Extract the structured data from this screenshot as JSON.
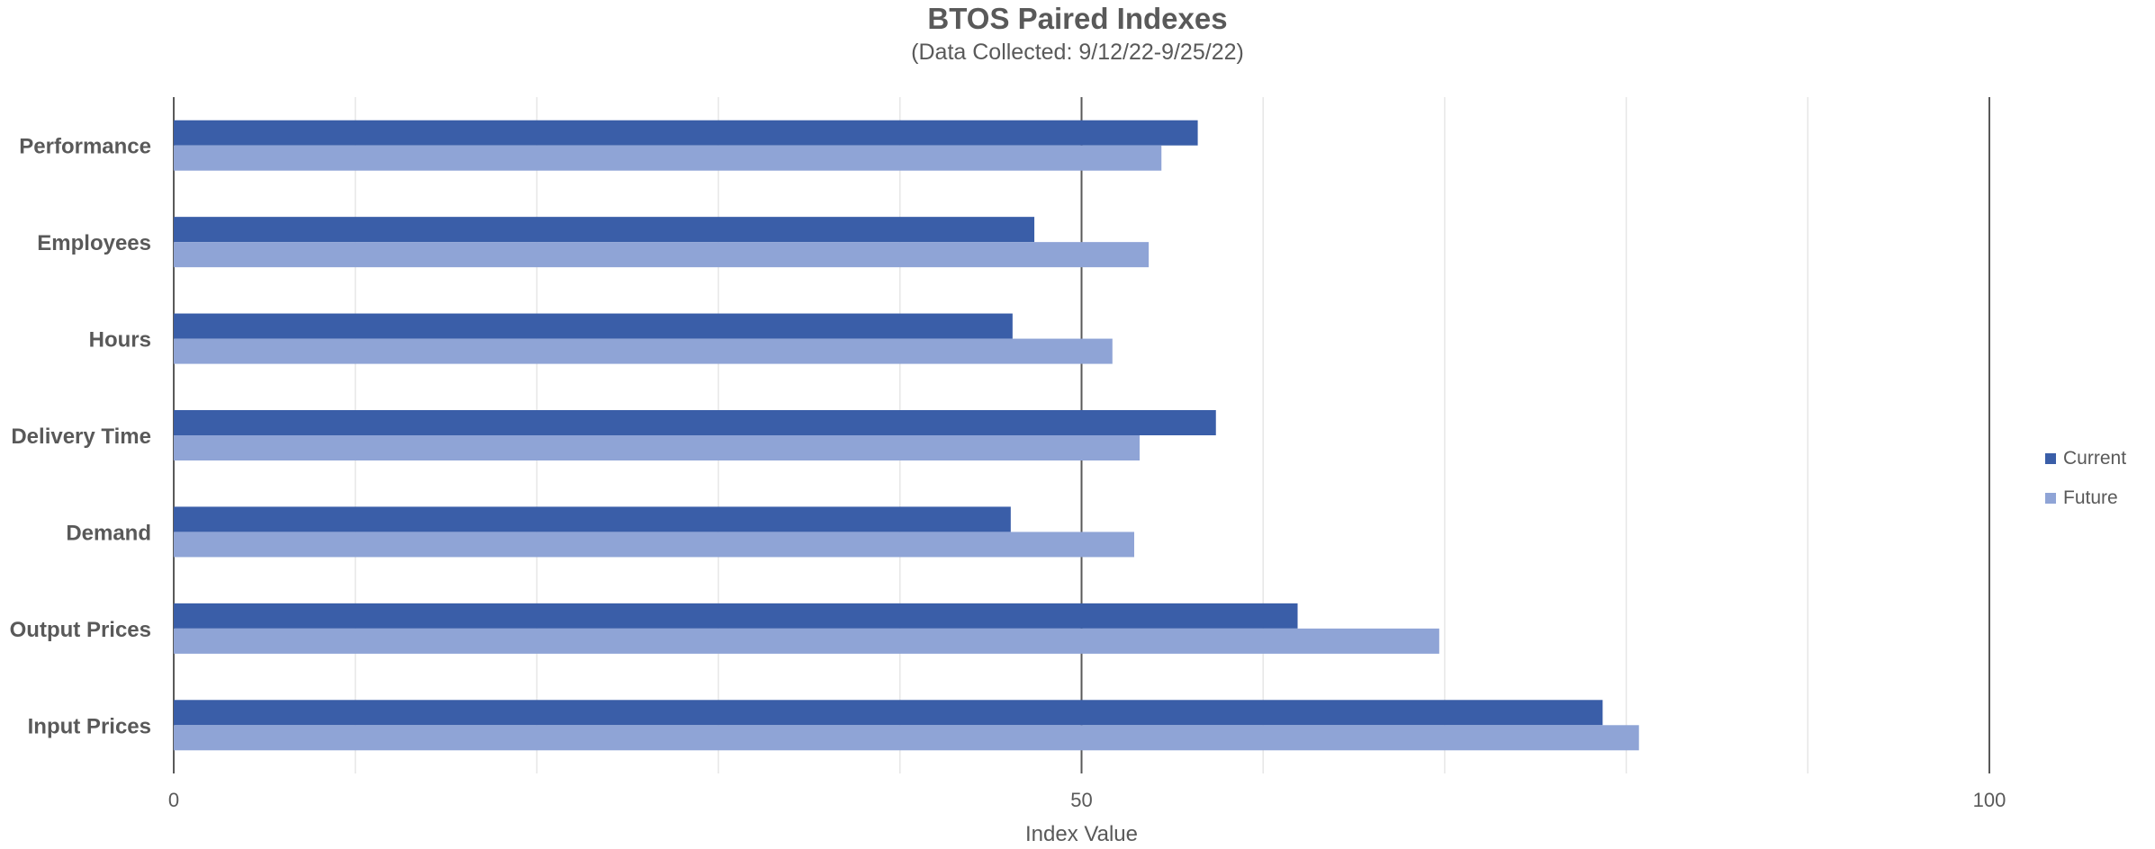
{
  "chart_data": {
    "type": "bar",
    "orientation": "horizontal",
    "title": "BTOS Paired Indexes",
    "subtitle": "(Data Collected: 9/12/22-9/25/22)",
    "xlabel": "Index Value",
    "ylabel": "",
    "xlim": [
      0,
      100
    ],
    "x_tick_labels": [
      "0",
      "50",
      "100"
    ],
    "minor_gridlines_every": 10,
    "reference_lines": [
      0,
      50,
      100
    ],
    "legend_position": "right",
    "categories": [
      "Performance",
      "Employees",
      "Hours",
      "Delivery Time",
      "Demand",
      "Output Prices",
      "Input Prices"
    ],
    "series": [
      {
        "name": "Current",
        "color": "#3a5ea8",
        "values": [
          56.4,
          47.4,
          46.2,
          57.4,
          46.1,
          61.9,
          78.7
        ]
      },
      {
        "name": "Future",
        "color": "#8fa4d6",
        "values": [
          54.4,
          53.7,
          51.7,
          53.2,
          52.9,
          69.7,
          80.7
        ]
      }
    ]
  }
}
